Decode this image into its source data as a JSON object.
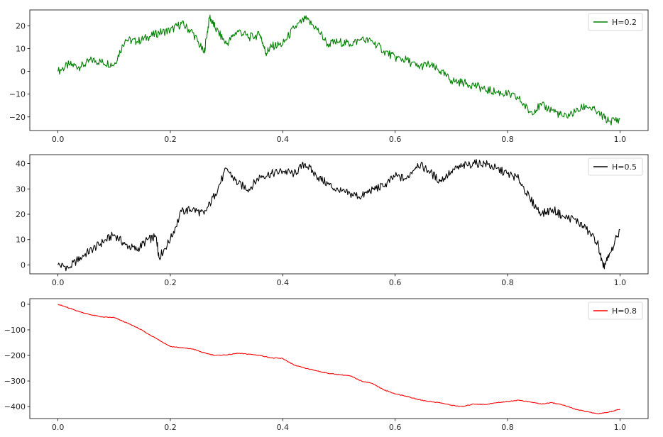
{
  "chart_data": [
    {
      "type": "line",
      "title": "",
      "xlabel": "",
      "ylabel": "",
      "xlim": [
        -0.05,
        1.05
      ],
      "ylim": [
        -26,
        27
      ],
      "xticks": [
        0.0,
        0.2,
        0.4,
        0.6,
        0.8,
        1.0
      ],
      "xtick_labels": [
        "0.0",
        "0.2",
        "0.4",
        "0.6",
        "0.8",
        "1.0"
      ],
      "yticks": [
        -20,
        -10,
        0,
        10,
        20
      ],
      "ytick_labels": [
        "−20",
        "−10",
        "0",
        "10",
        "20"
      ],
      "grid": false,
      "legend_position": "top-right",
      "series": [
        {
          "name": "H=0.2",
          "color": "#008000",
          "x": [
            0.0,
            0.02,
            0.04,
            0.06,
            0.08,
            0.1,
            0.12,
            0.14,
            0.16,
            0.18,
            0.2,
            0.22,
            0.24,
            0.26,
            0.27,
            0.28,
            0.3,
            0.32,
            0.34,
            0.36,
            0.37,
            0.38,
            0.4,
            0.42,
            0.44,
            0.46,
            0.48,
            0.5,
            0.52,
            0.54,
            0.56,
            0.58,
            0.6,
            0.62,
            0.64,
            0.66,
            0.68,
            0.7,
            0.72,
            0.74,
            0.76,
            0.78,
            0.8,
            0.82,
            0.84,
            0.86,
            0.88,
            0.9,
            0.92,
            0.94,
            0.96,
            0.98,
            1.0
          ],
          "values": [
            0,
            3,
            2,
            5,
            4,
            3,
            14,
            13,
            15,
            17,
            18,
            21,
            17,
            8,
            24,
            19,
            12,
            18,
            15,
            16,
            8,
            11,
            12,
            19,
            23,
            19,
            12,
            13,
            12,
            14,
            13,
            9,
            6,
            5,
            2,
            3,
            0,
            -4,
            -5,
            -6,
            -8,
            -9,
            -10,
            -12,
            -18,
            -15,
            -17,
            -20,
            -18,
            -15,
            -18,
            -22,
            -21
          ]
        }
      ]
    },
    {
      "type": "line",
      "title": "",
      "xlabel": "",
      "ylabel": "",
      "xlim": [
        -0.05,
        1.05
      ],
      "ylim": [
        -3.5,
        43.5
      ],
      "xticks": [
        0.0,
        0.2,
        0.4,
        0.6,
        0.8,
        1.0
      ],
      "xtick_labels": [
        "0.0",
        "0.2",
        "0.4",
        "0.6",
        "0.8",
        "1.0"
      ],
      "yticks": [
        0,
        10,
        20,
        30,
        40
      ],
      "ytick_labels": [
        "0",
        "10",
        "20",
        "30",
        "40"
      ],
      "grid": false,
      "legend_position": "top-right",
      "series": [
        {
          "name": "H=0.5",
          "color": "#000000",
          "x": [
            0.0,
            0.02,
            0.04,
            0.06,
            0.08,
            0.1,
            0.12,
            0.14,
            0.16,
            0.175,
            0.18,
            0.2,
            0.22,
            0.24,
            0.26,
            0.28,
            0.3,
            0.32,
            0.34,
            0.36,
            0.38,
            0.4,
            0.42,
            0.44,
            0.46,
            0.48,
            0.5,
            0.52,
            0.54,
            0.56,
            0.58,
            0.6,
            0.62,
            0.64,
            0.66,
            0.68,
            0.7,
            0.72,
            0.74,
            0.76,
            0.78,
            0.8,
            0.82,
            0.84,
            0.86,
            0.88,
            0.9,
            0.92,
            0.94,
            0.96,
            0.97,
            0.98,
            1.0
          ],
          "values": [
            0,
            -1,
            3,
            6,
            9,
            12,
            8,
            6,
            10,
            11,
            3,
            10,
            21,
            22,
            20,
            28,
            38,
            32,
            30,
            35,
            36,
            37,
            36,
            40,
            35,
            32,
            29,
            28,
            27,
            30,
            31,
            35,
            34,
            40,
            37,
            33,
            37,
            39,
            40,
            40,
            38,
            36,
            34,
            26,
            20,
            22,
            19,
            18,
            14,
            9,
            -1,
            3,
            14
          ]
        }
      ]
    },
    {
      "type": "line",
      "title": "",
      "xlabel": "",
      "ylabel": "",
      "xlim": [
        -0.05,
        1.05
      ],
      "ylim": [
        -447,
        22
      ],
      "xticks": [
        0.0,
        0.2,
        0.4,
        0.6,
        0.8,
        1.0
      ],
      "xtick_labels": [
        "0.0",
        "0.2",
        "0.4",
        "0.6",
        "0.8",
        "1.0"
      ],
      "yticks": [
        -400,
        -300,
        -200,
        -100,
        0
      ],
      "ytick_labels": [
        "−400",
        "−300",
        "−200",
        "−100",
        "0"
      ],
      "grid": false,
      "legend_position": "top-right",
      "series": [
        {
          "name": "H=0.8",
          "color": "#ff0000",
          "x": [
            0.0,
            0.02,
            0.04,
            0.06,
            0.08,
            0.1,
            0.12,
            0.14,
            0.16,
            0.18,
            0.2,
            0.22,
            0.24,
            0.26,
            0.28,
            0.3,
            0.32,
            0.34,
            0.36,
            0.38,
            0.4,
            0.42,
            0.44,
            0.46,
            0.48,
            0.5,
            0.52,
            0.54,
            0.56,
            0.58,
            0.6,
            0.62,
            0.64,
            0.66,
            0.68,
            0.7,
            0.72,
            0.74,
            0.76,
            0.78,
            0.8,
            0.82,
            0.84,
            0.86,
            0.88,
            0.9,
            0.92,
            0.94,
            0.96,
            0.98,
            1.0
          ],
          "values": [
            0,
            -15,
            -30,
            -42,
            -50,
            -52,
            -70,
            -90,
            -115,
            -140,
            -165,
            -170,
            -175,
            -190,
            -200,
            -198,
            -192,
            -195,
            -200,
            -210,
            -212,
            -238,
            -250,
            -260,
            -270,
            -275,
            -280,
            -300,
            -310,
            -335,
            -350,
            -360,
            -372,
            -380,
            -385,
            -395,
            -400,
            -390,
            -392,
            -385,
            -380,
            -375,
            -382,
            -390,
            -385,
            -395,
            -410,
            -420,
            -428,
            -422,
            -410
          ]
        }
      ]
    }
  ]
}
